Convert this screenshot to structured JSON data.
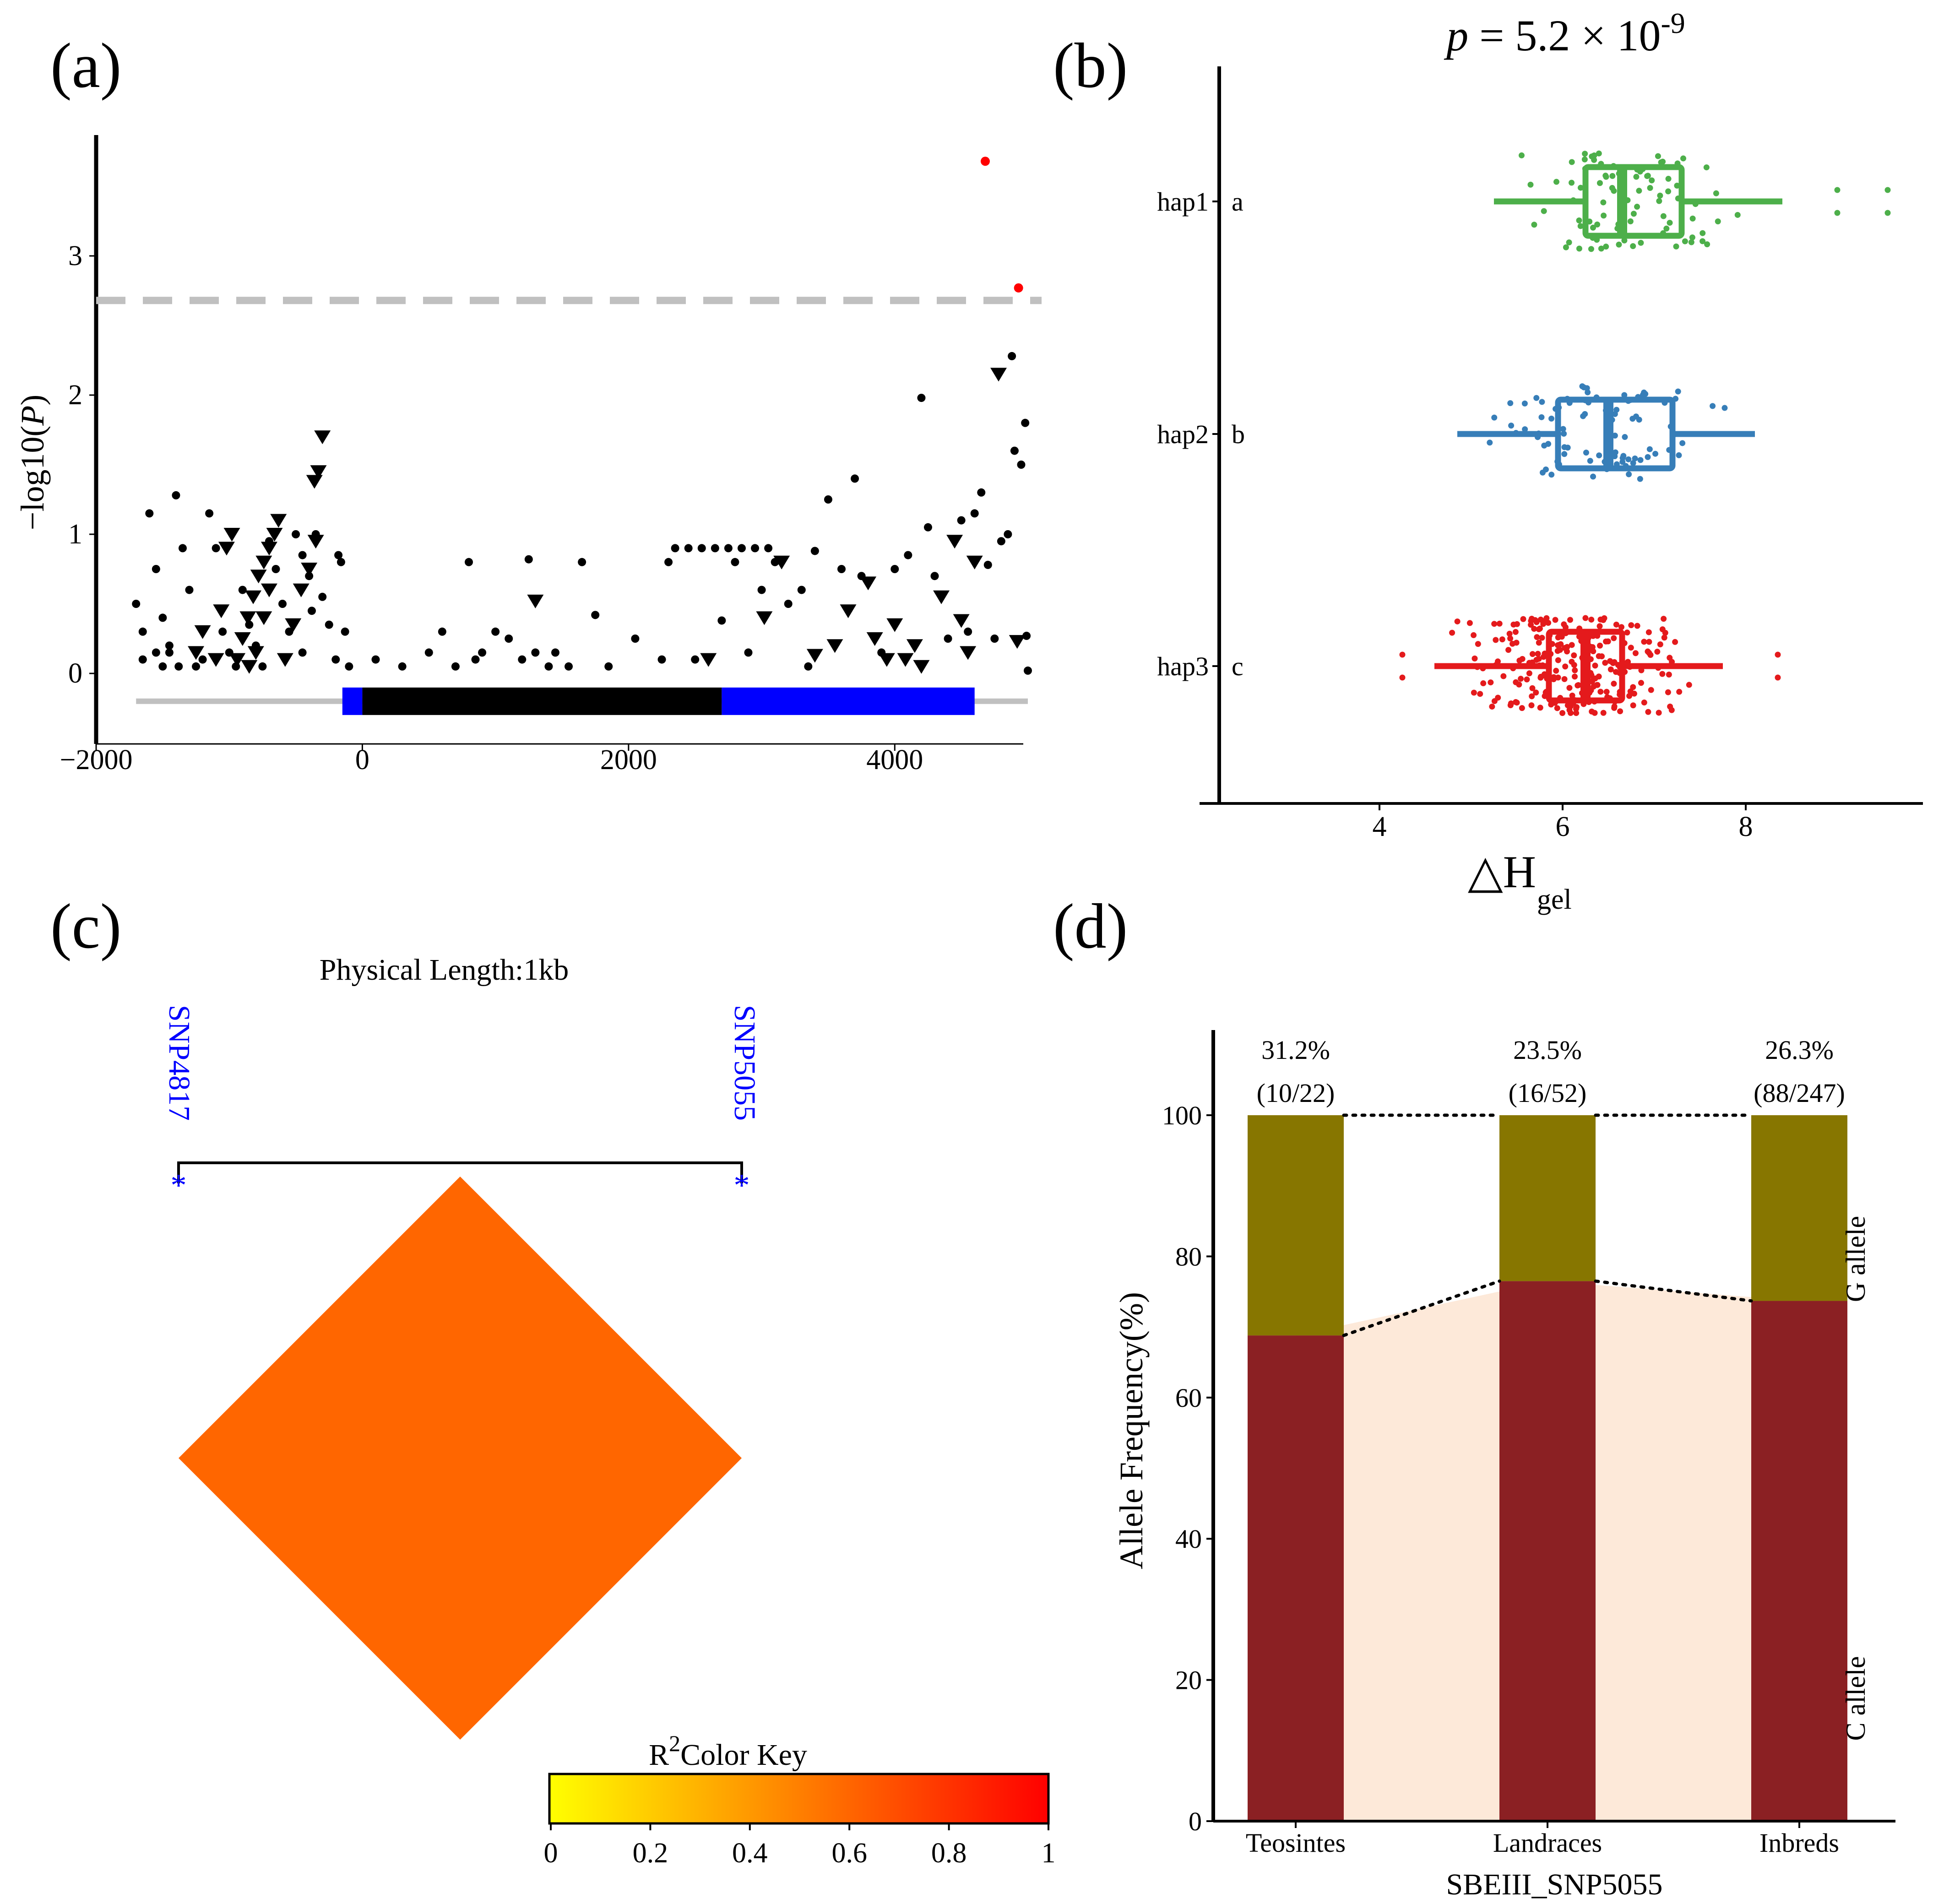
{
  "panels": {
    "a": {
      "label": "(a)"
    },
    "b": {
      "label": "(b)"
    },
    "c": {
      "label": "(c)"
    },
    "d": {
      "label": "(d)"
    }
  },
  "colors": {
    "significant": "#ff0000",
    "threshold": "#c0c0c0",
    "utr": "#0000ff",
    "cds": "#000000",
    "hap1": "#4daf4a",
    "hap2": "#377eb8",
    "hap3": "#e41a1c",
    "ld_cell": "#ff6600",
    "g_allele": "#877600",
    "c_allele": "#8b2023",
    "band": "#fde9d9"
  },
  "chart_data": [
    {
      "panel": "a",
      "type": "scatter",
      "title": "",
      "xlabel": "",
      "ylabel": "−log10(P)",
      "xlim": [
        -2000,
        5000
      ],
      "ylim": [
        -0.4,
        3.8
      ],
      "xticks": [
        -2000,
        0,
        2000,
        4000
      ],
      "xtick_labels": [
        "−2000",
        "0",
        "2000",
        "4000"
      ],
      "yticks": [
        0,
        1,
        2,
        3
      ],
      "ytick_labels": [
        "0",
        "1",
        "2",
        "3"
      ],
      "threshold": 2.68,
      "gene_model": {
        "track_y": -0.2,
        "line": [
          -1700,
          5000
        ],
        "utr5": [
          -150,
          0
        ],
        "cds": [
          0,
          2700
        ],
        "utr3": [
          2700,
          4600
        ]
      },
      "significant_points": [
        {
          "x": 4680,
          "y": 3.68
        },
        {
          "x": 4930,
          "y": 2.77
        }
      ],
      "triangle_points": [
        {
          "x": -300,
          "y": 1.7
        },
        {
          "x": -330,
          "y": 1.45
        },
        {
          "x": -360,
          "y": 1.38
        },
        {
          "x": -350,
          "y": 0.95
        },
        {
          "x": -400,
          "y": 0.75
        },
        {
          "x": -460,
          "y": 0.6
        },
        {
          "x": -520,
          "y": 0.35
        },
        {
          "x": -580,
          "y": 0.1
        },
        {
          "x": -630,
          "y": 1.1
        },
        {
          "x": -660,
          "y": 1.0
        },
        {
          "x": -700,
          "y": 0.9
        },
        {
          "x": -740,
          "y": 0.8
        },
        {
          "x": -780,
          "y": 0.7
        },
        {
          "x": -820,
          "y": 0.55
        },
        {
          "x": -860,
          "y": 0.4
        },
        {
          "x": -900,
          "y": 0.25
        },
        {
          "x": -940,
          "y": 0.1
        },
        {
          "x": -980,
          "y": 1.0
        },
        {
          "x": -1020,
          "y": 0.9
        },
        {
          "x": -1060,
          "y": 0.45
        },
        {
          "x": -700,
          "y": 0.6
        },
        {
          "x": -740,
          "y": 0.4
        },
        {
          "x": -800,
          "y": 0.15
        },
        {
          "x": -850,
          "y": 0.05
        },
        {
          "x": -1100,
          "y": 0.1
        },
        {
          "x": -1200,
          "y": 0.3
        },
        {
          "x": -1250,
          "y": 0.15
        },
        {
          "x": 1300,
          "y": 0.52
        },
        {
          "x": 2600,
          "y": 0.1
        },
        {
          "x": 3020,
          "y": 0.4
        },
        {
          "x": 3150,
          "y": 0.8
        },
        {
          "x": 3400,
          "y": 0.13
        },
        {
          "x": 3650,
          "y": 0.45
        },
        {
          "x": 3800,
          "y": 0.65
        },
        {
          "x": 3850,
          "y": 0.25
        },
        {
          "x": 3940,
          "y": 0.1
        },
        {
          "x": 4000,
          "y": 0.35
        },
        {
          "x": 4200,
          "y": 0.05
        },
        {
          "x": 4350,
          "y": 0.55
        },
        {
          "x": 4450,
          "y": 0.95
        },
        {
          "x": 4500,
          "y": 0.38
        },
        {
          "x": 4550,
          "y": 0.15
        },
        {
          "x": 4600,
          "y": 0.8
        },
        {
          "x": 4780,
          "y": 2.15
        },
        {
          "x": 4920,
          "y": 0.23
        },
        {
          "x": 4150,
          "y": 0.2
        },
        {
          "x": 4080,
          "y": 0.1
        },
        {
          "x": 3550,
          "y": 0.2
        }
      ],
      "circle_points": [
        {
          "x": -1650,
          "y": 0.1
        },
        {
          "x": -1600,
          "y": 1.15
        },
        {
          "x": -1550,
          "y": 0.75
        },
        {
          "x": -1500,
          "y": 0.4
        },
        {
          "x": -1450,
          "y": 0.2
        },
        {
          "x": -1400,
          "y": 1.28
        },
        {
          "x": -1380,
          "y": 0.05
        },
        {
          "x": -1350,
          "y": 0.9
        },
        {
          "x": -1300,
          "y": 0.6
        },
        {
          "x": -1250,
          "y": 0.05
        },
        {
          "x": -1200,
          "y": 0.1
        },
        {
          "x": -1150,
          "y": 1.15
        },
        {
          "x": -1100,
          "y": 0.9
        },
        {
          "x": -1050,
          "y": 0.3
        },
        {
          "x": -1000,
          "y": 0.15
        },
        {
          "x": -950,
          "y": 0.05
        },
        {
          "x": -1500,
          "y": 0.05
        },
        {
          "x": -1550,
          "y": 0.15
        },
        {
          "x": -1450,
          "y": 0.15
        },
        {
          "x": -1700,
          "y": 0.5
        },
        {
          "x": -1650,
          "y": 0.3
        },
        {
          "x": -900,
          "y": 0.6
        },
        {
          "x": -850,
          "y": 0.35
        },
        {
          "x": -800,
          "y": 0.2
        },
        {
          "x": -750,
          "y": 0.05
        },
        {
          "x": -700,
          "y": 0.95
        },
        {
          "x": -650,
          "y": 0.75
        },
        {
          "x": -600,
          "y": 0.5
        },
        {
          "x": -550,
          "y": 0.3
        },
        {
          "x": -500,
          "y": 1.0
        },
        {
          "x": -450,
          "y": 0.85
        },
        {
          "x": -400,
          "y": 0.7
        },
        {
          "x": -350,
          "y": 1.0
        },
        {
          "x": -300,
          "y": 0.55
        },
        {
          "x": -250,
          "y": 0.35
        },
        {
          "x": -200,
          "y": 0.1
        },
        {
          "x": -180,
          "y": 0.85
        },
        {
          "x": -160,
          "y": 0.8
        },
        {
          "x": -130,
          "y": 0.3
        },
        {
          "x": -100,
          "y": 0.05
        },
        {
          "x": -450,
          "y": 0.15
        },
        {
          "x": -380,
          "y": 0.45
        },
        {
          "x": 100,
          "y": 0.1
        },
        {
          "x": 300,
          "y": 0.05
        },
        {
          "x": 500,
          "y": 0.15
        },
        {
          "x": 600,
          "y": 0.3
        },
        {
          "x": 700,
          "y": 0.05
        },
        {
          "x": 800,
          "y": 0.8
        },
        {
          "x": 850,
          "y": 0.1
        },
        {
          "x": 900,
          "y": 0.15
        },
        {
          "x": 1000,
          "y": 0.3
        },
        {
          "x": 1100,
          "y": 0.25
        },
        {
          "x": 1200,
          "y": 0.1
        },
        {
          "x": 1250,
          "y": 0.82
        },
        {
          "x": 1300,
          "y": 0.15
        },
        {
          "x": 1400,
          "y": 0.05
        },
        {
          "x": 1450,
          "y": 0.15
        },
        {
          "x": 1550,
          "y": 0.05
        },
        {
          "x": 1650,
          "y": 0.8
        },
        {
          "x": 1750,
          "y": 0.42
        },
        {
          "x": 1850,
          "y": 0.05
        },
        {
          "x": 2050,
          "y": 0.25
        },
        {
          "x": 2250,
          "y": 0.1
        },
        {
          "x": 2350,
          "y": 0.9
        },
        {
          "x": 2450,
          "y": 0.9
        },
        {
          "x": 2550,
          "y": 0.9
        },
        {
          "x": 2650,
          "y": 0.9
        },
        {
          "x": 2750,
          "y": 0.9
        },
        {
          "x": 2850,
          "y": 0.9
        },
        {
          "x": 2950,
          "y": 0.9
        },
        {
          "x": 3050,
          "y": 0.9
        },
        {
          "x": 2300,
          "y": 0.8
        },
        {
          "x": 2800,
          "y": 0.8
        },
        {
          "x": 3100,
          "y": 0.8
        },
        {
          "x": 2500,
          "y": 0.1
        },
        {
          "x": 2700,
          "y": 0.38
        },
        {
          "x": 2900,
          "y": 0.15
        },
        {
          "x": 3000,
          "y": 0.6
        },
        {
          "x": 3200,
          "y": 0.5
        },
        {
          "x": 3300,
          "y": 0.6
        },
        {
          "x": 3400,
          "y": 0.88
        },
        {
          "x": 3500,
          "y": 1.25
        },
        {
          "x": 3600,
          "y": 0.75
        },
        {
          "x": 3700,
          "y": 1.4
        },
        {
          "x": 3750,
          "y": 0.7
        },
        {
          "x": 3900,
          "y": 0.15
        },
        {
          "x": 4000,
          "y": 0.75
        },
        {
          "x": 4100,
          "y": 0.85
        },
        {
          "x": 4200,
          "y": 1.98
        },
        {
          "x": 4250,
          "y": 1.05
        },
        {
          "x": 4300,
          "y": 0.7
        },
        {
          "x": 4400,
          "y": 0.25
        },
        {
          "x": 4500,
          "y": 1.1
        },
        {
          "x": 4600,
          "y": 1.15
        },
        {
          "x": 4650,
          "y": 1.3
        },
        {
          "x": 4700,
          "y": 0.78
        },
        {
          "x": 4750,
          "y": 0.25
        },
        {
          "x": 4800,
          "y": 0.95
        },
        {
          "x": 4850,
          "y": 1.0
        },
        {
          "x": 4880,
          "y": 2.28
        },
        {
          "x": 4900,
          "y": 1.6
        },
        {
          "x": 4950,
          "y": 1.5
        },
        {
          "x": 4980,
          "y": 1.8
        },
        {
          "x": 4990,
          "y": 0.27
        },
        {
          "x": 5000,
          "y": 0.02
        },
        {
          "x": 4550,
          "y": 0.3
        },
        {
          "x": 3350,
          "y": 0.05
        }
      ]
    },
    {
      "panel": "b",
      "type": "box",
      "title": "p = 5.2 × 10-9",
      "title_parts": {
        "p": "p",
        "eq": " = 5.2 × 10",
        "exp": "-9"
      },
      "xlabel": "△H",
      "xlabel_sub": "gel",
      "xlim": [
        2.3,
        9.8
      ],
      "xticks": [
        4,
        6,
        8
      ],
      "xtick_labels": [
        "4",
        "6",
        "8"
      ],
      "categories": [
        "hap1",
        "hap2",
        "hap3"
      ],
      "letters": [
        "a",
        "b",
        "c"
      ],
      "boxes": [
        {
          "name": "hap1",
          "letter": "a",
          "whisker_low": 5.25,
          "q1": 6.25,
          "median": 6.65,
          "q3": 7.3,
          "whisker_high": 8.4,
          "outliers": [
            9.0,
            9.55
          ]
        },
        {
          "name": "hap2",
          "letter": "b",
          "whisker_low": 4.85,
          "q1": 5.95,
          "median": 6.5,
          "q3": 7.2,
          "whisker_high": 8.1,
          "outliers": []
        },
        {
          "name": "hap3",
          "letter": "c",
          "whisker_low": 4.6,
          "q1": 5.85,
          "median": 6.25,
          "q3": 6.65,
          "whisker_high": 7.75,
          "outliers": [
            4.25,
            8.35
          ]
        }
      ]
    },
    {
      "panel": "c",
      "type": "heatmap",
      "title": "Physical Length:1kb",
      "snps": [
        "SNP4817",
        "SNP5055"
      ],
      "marker": "*",
      "r2": 0.55,
      "color_key": {
        "title_prefix": "R",
        "title_sup": "2",
        "title_suffix": "Color Key",
        "ticks": [
          0,
          0.2,
          0.4,
          0.6,
          0.8,
          1
        ],
        "tick_labels": [
          "0",
          "0.2",
          "0.4",
          "0.6",
          "0.8",
          "1"
        ],
        "from": "#ffff00",
        "to": "#ff0000"
      }
    },
    {
      "panel": "d",
      "type": "bar",
      "stacked": true,
      "xlabel": "SBEIII_SNP5055",
      "ylabel": "Allele Frequency(%)",
      "ylim": [
        0,
        111
      ],
      "yticks": [
        0,
        20,
        40,
        60,
        80,
        100
      ],
      "ytick_labels": [
        "0",
        "20",
        "40",
        "60",
        "80",
        "100"
      ],
      "categories": [
        "Teosintes",
        "Landraces",
        "Inbreds"
      ],
      "series": [
        {
          "name": "C allele",
          "values": [
            68.8,
            76.5,
            73.7
          ]
        },
        {
          "name": "G allele",
          "values": [
            31.2,
            23.5,
            26.3
          ]
        }
      ],
      "bar_labels": [
        {
          "percent": "31.2%",
          "counts": "(10/22)"
        },
        {
          "percent": "23.5%",
          "counts": "(16/52)"
        },
        {
          "percent": "26.3%",
          "counts": "(88/247)"
        }
      ],
      "legend": {
        "g": "G allele",
        "c": "C allele"
      }
    }
  ]
}
